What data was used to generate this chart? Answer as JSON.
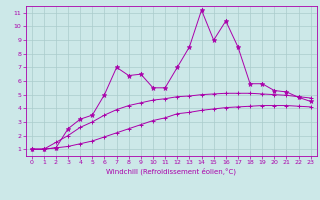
{
  "xlabel": "Windchill (Refroidissement éolien,°C)",
  "bg_color": "#cce8e8",
  "line_color": "#aa00aa",
  "grid_color": "#aacccc",
  "xlim": [
    -0.5,
    23.5
  ],
  "ylim": [
    0.5,
    11.5
  ],
  "xticks": [
    0,
    1,
    2,
    3,
    4,
    5,
    6,
    7,
    8,
    9,
    10,
    11,
    12,
    13,
    14,
    15,
    16,
    17,
    18,
    19,
    20,
    21,
    22,
    23
  ],
  "yticks": [
    1,
    2,
    3,
    4,
    5,
    6,
    7,
    8,
    9,
    10,
    11
  ],
  "series1_x": [
    0,
    1,
    2,
    3,
    4,
    5,
    6,
    7,
    8,
    9,
    10,
    11,
    12,
    13,
    14,
    15,
    16,
    17,
    18,
    19,
    20,
    21,
    22,
    23
  ],
  "series1_y": [
    1.0,
    1.0,
    1.1,
    1.2,
    1.4,
    1.6,
    1.9,
    2.2,
    2.5,
    2.8,
    3.1,
    3.3,
    3.6,
    3.7,
    3.85,
    3.95,
    4.05,
    4.1,
    4.15,
    4.2,
    4.2,
    4.2,
    4.15,
    4.1
  ],
  "series2_x": [
    0,
    1,
    2,
    3,
    4,
    5,
    6,
    7,
    8,
    9,
    10,
    11,
    12,
    13,
    14,
    15,
    16,
    17,
    18,
    19,
    20,
    21,
    22,
    23
  ],
  "series2_y": [
    1.0,
    1.0,
    1.5,
    2.0,
    2.6,
    3.0,
    3.5,
    3.9,
    4.2,
    4.4,
    4.6,
    4.7,
    4.85,
    4.9,
    5.0,
    5.05,
    5.1,
    5.1,
    5.1,
    5.05,
    5.0,
    4.95,
    4.85,
    4.75
  ],
  "series3_x": [
    0,
    1,
    2,
    3,
    4,
    5,
    6,
    7,
    8,
    9,
    10,
    11,
    12,
    13,
    14,
    15,
    16,
    17,
    18,
    19,
    20,
    21,
    22,
    23
  ],
  "series3_y": [
    1.0,
    1.0,
    1.1,
    2.5,
    3.2,
    3.5,
    5.0,
    7.0,
    6.4,
    6.5,
    5.5,
    5.5,
    7.0,
    8.5,
    11.2,
    9.0,
    10.4,
    8.5,
    5.8,
    5.8,
    5.3,
    5.2,
    4.8,
    4.5
  ]
}
